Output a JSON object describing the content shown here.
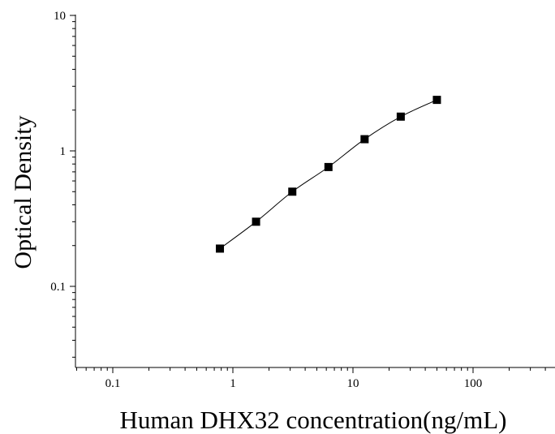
{
  "chart_data": {
    "type": "scatter",
    "xlabel": "Human DHX32 concentration(ng/mL)",
    "ylabel": "Optical Density",
    "xscale": "log",
    "yscale": "log",
    "xlim": [
      0.05,
      450
    ],
    "ylim": [
      0.03,
      10
    ],
    "xticks": [
      {
        "value": 0.1,
        "label": "0.1"
      },
      {
        "value": 1,
        "label": "1"
      },
      {
        "value": 10,
        "label": "10"
      },
      {
        "value": 100,
        "label": "100"
      }
    ],
    "yticks": [
      {
        "value": 0.1,
        "label": "0.1"
      },
      {
        "value": 1,
        "label": "1"
      },
      {
        "value": 10,
        "label": "10"
      }
    ],
    "grid": false,
    "series": [
      {
        "marker": "square",
        "color": "#000000",
        "x": [
          0.78,
          1.56,
          3.125,
          6.25,
          12.5,
          25,
          50
        ],
        "y": [
          0.19,
          0.3,
          0.5,
          0.76,
          1.22,
          1.79,
          2.38
        ]
      }
    ],
    "fit_curve": true
  }
}
